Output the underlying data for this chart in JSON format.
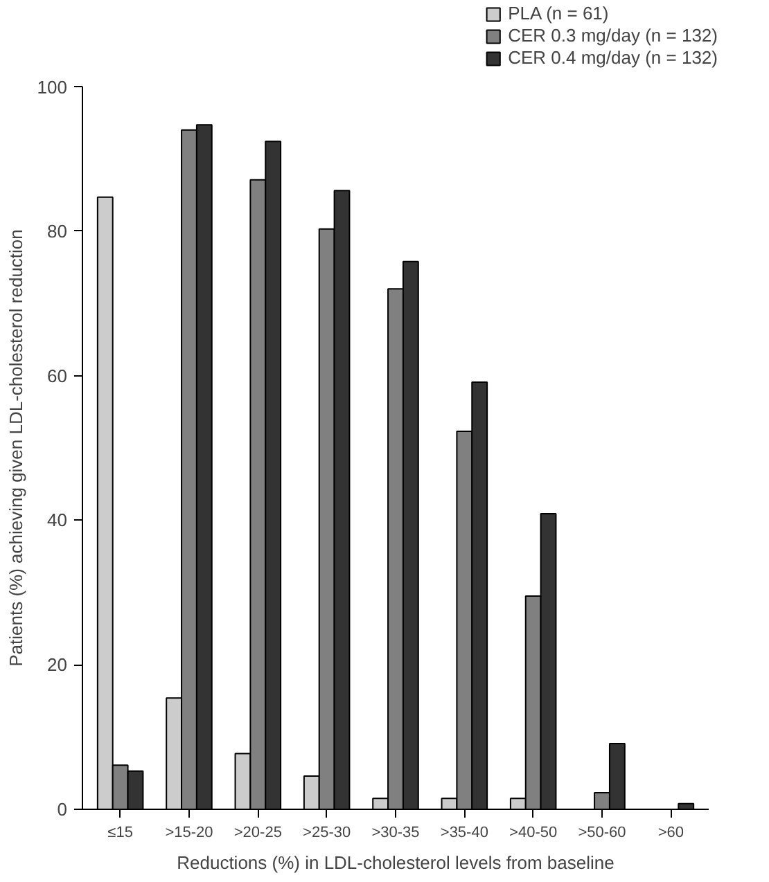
{
  "chart_data": {
    "type": "bar",
    "xlabel": "Reductions (%) in LDL-cholesterol levels from baseline",
    "ylabel": "Patients (%) achieving given LDL-cholesterol reduction",
    "categories": [
      "≤15",
      ">15-20",
      ">20-25",
      ">25-30",
      ">30-35",
      ">35-40",
      ">40-50",
      ">50-60",
      ">60"
    ],
    "series": [
      {
        "name": "PLA (n = 61)",
        "color": "#cccccc",
        "values": [
          84.7,
          15.4,
          7.7,
          4.6,
          1.5,
          1.5,
          1.5,
          null,
          null
        ]
      },
      {
        "name": "CER 0.3 mg/day (n = 132)",
        "color": "#808080",
        "values": [
          6.1,
          94.0,
          87.1,
          80.3,
          72.0,
          52.3,
          29.5,
          2.3,
          null
        ]
      },
      {
        "name": "CER 0.4 mg/day (n = 132)",
        "color": "#333333",
        "values": [
          5.3,
          94.7,
          92.4,
          85.6,
          75.8,
          59.1,
          40.9,
          9.1,
          0.8
        ]
      }
    ],
    "ylim": [
      0,
      100
    ],
    "yticks": [
      0,
      20,
      40,
      60,
      80,
      100
    ],
    "grid": false,
    "legend": "top right"
  }
}
